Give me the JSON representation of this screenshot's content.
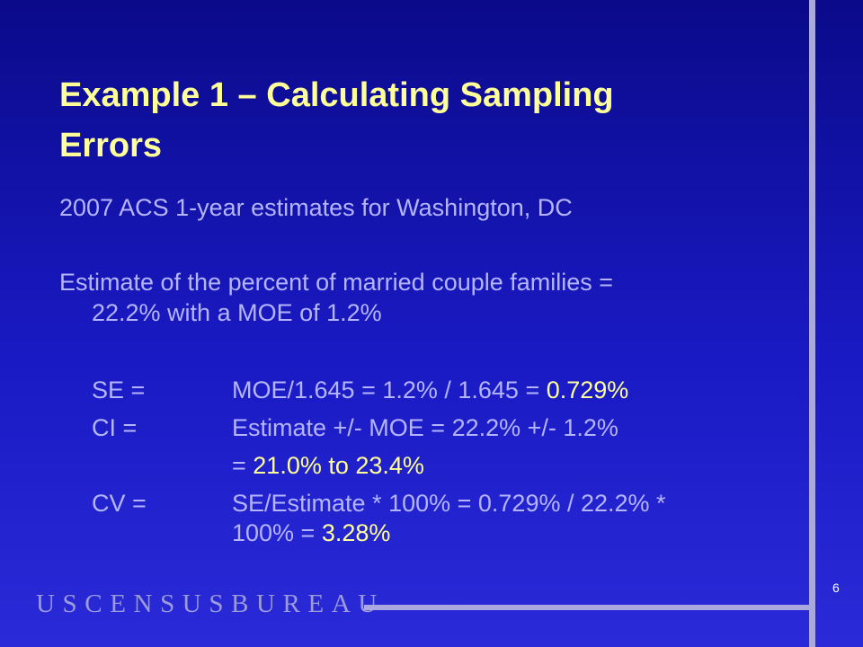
{
  "slide": {
    "title_line1": "Example 1 – Calculating Sampling",
    "title_line2": "Errors",
    "subtitle": "2007 ACS 1-year estimates for Washington, DC",
    "estimate_line1": "Estimate of the percent of married couple families =",
    "estimate_line2": "22.2% with a MOE of 1.2%",
    "se": {
      "label": "SE =",
      "formula": "MOE/1.645 = 1.2% / 1.645 = ",
      "result": "0.729%"
    },
    "ci": {
      "label": "CI =",
      "formula": "Estimate +/- MOE = 22.2% +/- 1.2%",
      "result_prefix": "= ",
      "result": "21.0% to 23.4%"
    },
    "cv": {
      "label": "CV =",
      "formula_line1": "SE/Estimate * 100% = 0.729% / 22.2% *",
      "formula_line2": "100% = ",
      "result": "3.28%"
    },
    "footer_brand": "USCENSUSBUREAU",
    "page_number": "6"
  },
  "colors": {
    "background_top": "#0a0a8a",
    "background_bottom": "#2a2ad8",
    "title": "#ffff99",
    "body_text": "#b4b4ff",
    "highlight": "#ffff99"
  }
}
